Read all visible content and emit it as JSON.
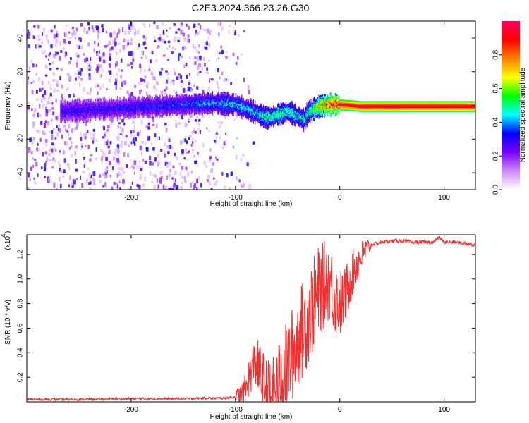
{
  "figure_title": "C2E3.2024.366.23.26.G30",
  "chart_data": [
    {
      "type": "heatmap",
      "xlabel": "Height of straight line (km)",
      "ylabel": "Frequency (Hz)",
      "xlim": [
        -300,
        130
      ],
      "ylim": [
        -50,
        50
      ],
      "x_ticks": [
        -200,
        -100,
        0,
        100
      ],
      "y_ticks": [
        -40,
        -20,
        0,
        20,
        40
      ],
      "colorbar": {
        "label": "Normalized spectral amplitude",
        "range": [
          0,
          1
        ],
        "ticks": [
          "0.0",
          "0.2",
          "0.4",
          "0.6",
          "0.8"
        ],
        "colors": [
          "#ffffff",
          "#cc88ff",
          "#7a00ff",
          "#0000ff",
          "#00ffff",
          "#00ff00",
          "#ffff00",
          "#ff7f00",
          "#ff0000",
          "#ff0060"
        ]
      },
      "ridge_profile": {
        "x": [
          -265,
          -240,
          -210,
          -180,
          -150,
          -120,
          -100,
          -80,
          -70,
          -60,
          -50,
          -40,
          -35,
          -30,
          -20,
          -10,
          0,
          20,
          60,
          100,
          130
        ],
        "center_freq": [
          -3,
          -2,
          -1,
          0,
          1,
          2,
          1,
          -4,
          -7,
          -5,
          -3,
          -6,
          -8,
          -3,
          0,
          1,
          1,
          0,
          0,
          0,
          0
        ],
        "peak_amplitude": [
          0.3,
          0.3,
          0.3,
          0.32,
          0.35,
          0.4,
          0.42,
          0.45,
          0.48,
          0.52,
          0.5,
          0.46,
          0.45,
          0.48,
          0.7,
          0.85,
          0.95,
          0.97,
          0.98,
          0.98,
          0.98
        ]
      },
      "noise_region": {
        "x_range": [
          -300,
          -90
        ],
        "amplitude": [
          0.05,
          0.35
        ]
      }
    },
    {
      "type": "line",
      "xlabel": "Height of straight line (km)",
      "ylabel": "SNR (10 * v/v)",
      "y_multiplier": "(x10",
      "y_multiplier_exp": "4",
      "xlim": [
        -300,
        130
      ],
      "ylim": [
        0,
        1.36
      ],
      "x_ticks": [
        -200,
        -100,
        0,
        100
      ],
      "y_ticks": [
        "0.2",
        "0.4",
        "0.6",
        "0.8",
        "1.0",
        "1.2"
      ],
      "color": "#f03030",
      "series": [
        {
          "x": [
            -300,
            -250,
            -200,
            -150,
            -130,
            -110,
            -100,
            -95,
            -90,
            -87,
            -83,
            -80,
            -75,
            -70,
            -65,
            -60,
            -57,
            -50,
            -45,
            -40,
            -35,
            -30,
            -25,
            -20,
            -15,
            -10,
            -5,
            0,
            5,
            10,
            15,
            20,
            25,
            30,
            40,
            50,
            60,
            70,
            80,
            90,
            95,
            100,
            110,
            120,
            130
          ],
          "y": [
            0.02,
            0.02,
            0.025,
            0.025,
            0.03,
            0.03,
            0.04,
            0.06,
            0.1,
            0.2,
            0.3,
            0.32,
            0.2,
            0.08,
            0.04,
            0.1,
            0.2,
            0.3,
            0.4,
            0.5,
            0.6,
            0.7,
            0.8,
            0.9,
            0.95,
            1.0,
            0.85,
            0.8,
            0.85,
            1.0,
            1.1,
            1.18,
            1.24,
            1.28,
            1.3,
            1.31,
            1.31,
            1.3,
            1.3,
            1.3,
            1.34,
            1.3,
            1.3,
            1.29,
            1.28
          ]
        }
      ]
    }
  ]
}
